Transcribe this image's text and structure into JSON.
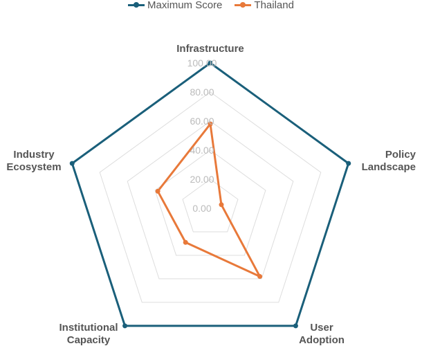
{
  "chart_data": {
    "type": "radar",
    "axes": [
      "Infrastructure",
      "Policy Landscape",
      "User Adoption",
      "Institutional Capacity",
      "Industry Ecosystem"
    ],
    "axis_label_lines": [
      [
        "Infrastructure"
      ],
      [
        "Policy",
        "Landscape"
      ],
      [
        "User",
        "Adoption"
      ],
      [
        "Institutional",
        "Capacity"
      ],
      [
        "Industry",
        "Ecosystem"
      ]
    ],
    "ticks": [
      "0.00",
      "20.00",
      "40.00",
      "60.00",
      "80.00",
      "100.00"
    ],
    "range": [
      0,
      100
    ],
    "series": [
      {
        "name": "Maximum Score",
        "color": "#1a5f7a",
        "values": [
          100,
          100,
          100,
          100,
          100
        ]
      },
      {
        "name": "Thailand",
        "color": "#e8793a",
        "values": [
          58,
          8,
          58,
          29,
          38
        ]
      }
    ],
    "legend_position": "top",
    "grid": true
  }
}
